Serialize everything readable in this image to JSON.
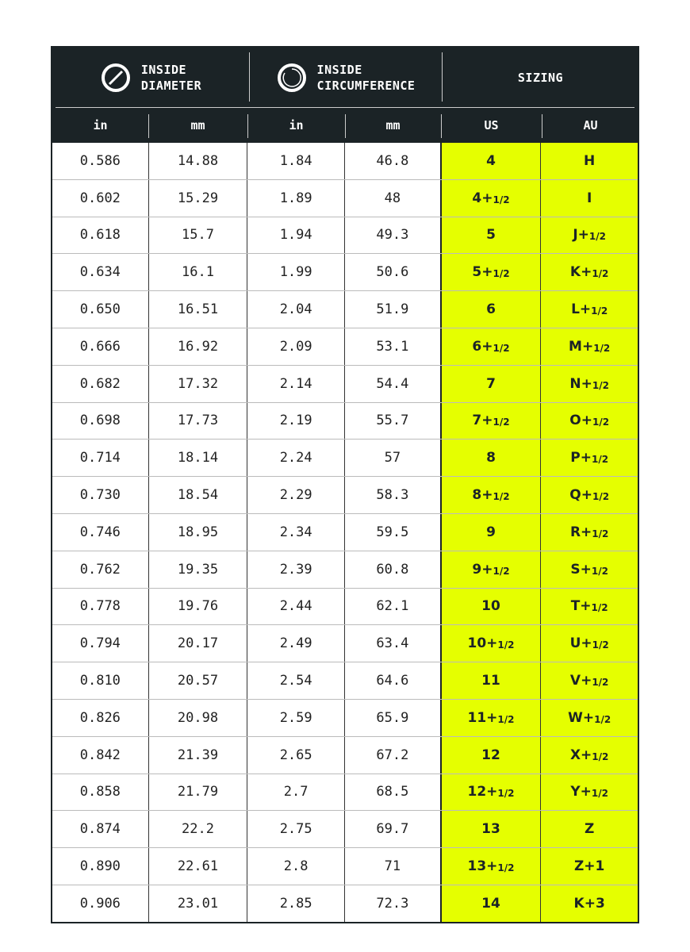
{
  "header": {
    "groups": [
      {
        "l1": "INSIDE",
        "l2": "DIAMETER",
        "icon": "diameter-icon"
      },
      {
        "l1": "INSIDE",
        "l2": "CIRCUMFERENCE",
        "icon": "circumference-icon"
      },
      {
        "l1": "SIZING"
      }
    ],
    "columns": [
      "in",
      "mm",
      "in",
      "mm",
      "US",
      "AU"
    ]
  },
  "colors": {
    "header_bg": "#1b2326",
    "highlight": "#e5ff00"
  },
  "rows": [
    {
      "d_in": "0.586",
      "d_mm": "14.88",
      "c_in": "1.84",
      "c_mm": "46.8",
      "us": "4",
      "us_f": "",
      "au": "H",
      "au_f": ""
    },
    {
      "d_in": "0.602",
      "d_mm": "15.29",
      "c_in": "1.89",
      "c_mm": "48",
      "us": "4+",
      "us_f": "1/2",
      "au": "I",
      "au_f": ""
    },
    {
      "d_in": "0.618",
      "d_mm": "15.7",
      "c_in": "1.94",
      "c_mm": "49.3",
      "us": "5",
      "us_f": "",
      "au": "J+",
      "au_f": "1/2"
    },
    {
      "d_in": "0.634",
      "d_mm": "16.1",
      "c_in": "1.99",
      "c_mm": "50.6",
      "us": "5+",
      "us_f": "1/2",
      "au": "K+",
      "au_f": "1/2"
    },
    {
      "d_in": "0.650",
      "d_mm": "16.51",
      "c_in": "2.04",
      "c_mm": "51.9",
      "us": "6",
      "us_f": "",
      "au": "L+",
      "au_f": "1/2"
    },
    {
      "d_in": "0.666",
      "d_mm": "16.92",
      "c_in": "2.09",
      "c_mm": "53.1",
      "us": "6+",
      "us_f": "1/2",
      "au": "M+",
      "au_f": "1/2"
    },
    {
      "d_in": "0.682",
      "d_mm": "17.32",
      "c_in": "2.14",
      "c_mm": "54.4",
      "us": "7",
      "us_f": "",
      "au": "N+",
      "au_f": "1/2"
    },
    {
      "d_in": "0.698",
      "d_mm": "17.73",
      "c_in": "2.19",
      "c_mm": "55.7",
      "us": "7+",
      "us_f": "1/2",
      "au": "O+",
      "au_f": "1/2"
    },
    {
      "d_in": "0.714",
      "d_mm": "18.14",
      "c_in": "2.24",
      "c_mm": "57",
      "us": "8",
      "us_f": "",
      "au": "P+",
      "au_f": "1/2"
    },
    {
      "d_in": "0.730",
      "d_mm": "18.54",
      "c_in": "2.29",
      "c_mm": "58.3",
      "us": "8+",
      "us_f": "1/2",
      "au": "Q+",
      "au_f": "1/2"
    },
    {
      "d_in": "0.746",
      "d_mm": "18.95",
      "c_in": "2.34",
      "c_mm": "59.5",
      "us": "9",
      "us_f": "",
      "au": "R+",
      "au_f": "1/2"
    },
    {
      "d_in": "0.762",
      "d_mm": "19.35",
      "c_in": "2.39",
      "c_mm": "60.8",
      "us": "9+",
      "us_f": "1/2",
      "au": "S+",
      "au_f": "1/2"
    },
    {
      "d_in": "0.778",
      "d_mm": "19.76",
      "c_in": "2.44",
      "c_mm": "62.1",
      "us": "10",
      "us_f": "",
      "au": "T+",
      "au_f": "1/2"
    },
    {
      "d_in": "0.794",
      "d_mm": "20.17",
      "c_in": "2.49",
      "c_mm": "63.4",
      "us": "10+",
      "us_f": "1/2",
      "au": "U+",
      "au_f": "1/2"
    },
    {
      "d_in": "0.810",
      "d_mm": "20.57",
      "c_in": "2.54",
      "c_mm": "64.6",
      "us": "11",
      "us_f": "",
      "au": "V+",
      "au_f": "1/2"
    },
    {
      "d_in": "0.826",
      "d_mm": "20.98",
      "c_in": "2.59",
      "c_mm": "65.9",
      "us": "11+",
      "us_f": "1/2",
      "au": "W+",
      "au_f": "1/2"
    },
    {
      "d_in": "0.842",
      "d_mm": "21.39",
      "c_in": "2.65",
      "c_mm": "67.2",
      "us": "12",
      "us_f": "",
      "au": "X+",
      "au_f": "1/2"
    },
    {
      "d_in": "0.858",
      "d_mm": "21.79",
      "c_in": "2.7",
      "c_mm": "68.5",
      "us": "12+",
      "us_f": "1/2",
      "au": "Y+",
      "au_f": "1/2"
    },
    {
      "d_in": "0.874",
      "d_mm": "22.2",
      "c_in": "2.75",
      "c_mm": "69.7",
      "us": "13",
      "us_f": "",
      "au": "Z",
      "au_f": ""
    },
    {
      "d_in": "0.890",
      "d_mm": "22.61",
      "c_in": "2.8",
      "c_mm": "71",
      "us": "13+",
      "us_f": "1/2",
      "au": "Z+1",
      "au_f": ""
    },
    {
      "d_in": "0.906",
      "d_mm": "23.01",
      "c_in": "2.85",
      "c_mm": "72.3",
      "us": "14",
      "us_f": "",
      "au": "K+3",
      "au_f": ""
    }
  ]
}
